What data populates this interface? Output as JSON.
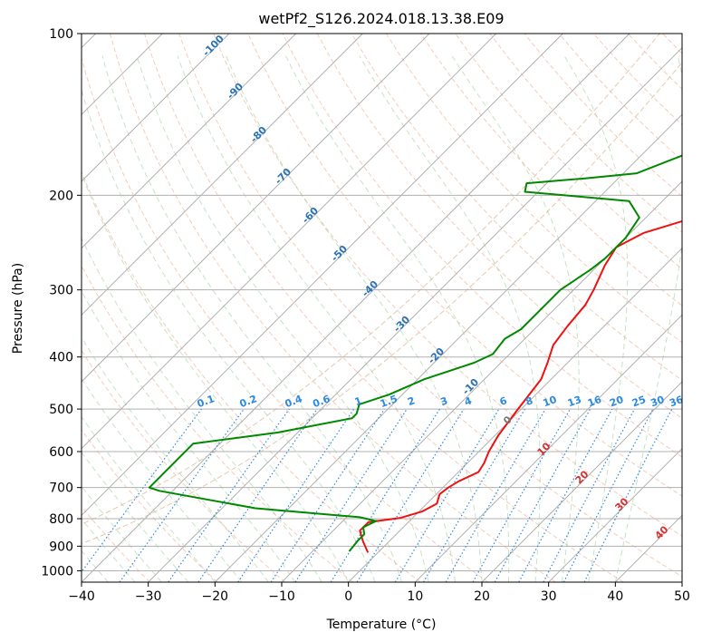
{
  "chart_data": {
    "type": "skew-t",
    "title": "wetPf2_S126.2024.018.13.38.E09",
    "xlabel": "Temperature (°C)",
    "ylabel": "Pressure (hPa)",
    "xlim": [
      -40,
      50
    ],
    "ylim": [
      1050,
      100
    ],
    "x_ticks": [
      "−40",
      "−30",
      "−20",
      "−10",
      "0",
      "10",
      "20",
      "30",
      "40",
      "50"
    ],
    "y_ticks": [
      "100",
      "200",
      "300",
      "400",
      "500",
      "600",
      "700",
      "800",
      "900",
      "1000"
    ],
    "y_scale": "log",
    "grid": true,
    "series": [
      {
        "name": "",
        "color": "#ee1111",
        "points": [
          [
            -1.5,
            925
          ],
          [
            -4,
            880
          ],
          [
            -6,
            842
          ],
          [
            -6,
            812
          ],
          [
            -1.8,
            797
          ],
          [
            0.5,
            775
          ],
          [
            1.5,
            750
          ],
          [
            0.5,
            720
          ],
          [
            0.8,
            700
          ],
          [
            1.5,
            680
          ],
          [
            3,
            655
          ],
          [
            2.5,
            630
          ],
          [
            1.5,
            600
          ],
          [
            0.5,
            560
          ],
          [
            -0.5,
            500
          ],
          [
            -1.5,
            440
          ],
          [
            -3,
            410
          ],
          [
            -4.8,
            380
          ],
          [
            -5.5,
            350
          ],
          [
            -6,
            320
          ],
          [
            -7,
            300
          ],
          [
            -9,
            270
          ],
          [
            -10,
            250
          ],
          [
            -8,
            235
          ],
          [
            -2,
            218
          ],
          [
            6,
            203
          ],
          [
            10,
            193
          ],
          [
            17,
            170
          ],
          [
            25,
            150
          ],
          [
            31,
            130
          ],
          [
            36,
            113
          ],
          [
            38,
            103
          ]
        ]
      },
      {
        "name": "",
        "color": "#008800",
        "points": [
          [
            -4.5,
            920
          ],
          [
            -4.8,
            880
          ],
          [
            -4.8,
            855
          ],
          [
            -6,
            830
          ],
          [
            -5,
            808
          ],
          [
            -8,
            795
          ],
          [
            -25,
            765
          ],
          [
            -42,
            710
          ],
          [
            -44,
            700
          ],
          [
            -44,
            580
          ],
          [
            -33,
            553
          ],
          [
            -24,
            520
          ],
          [
            -24,
            510
          ],
          [
            -25,
            490
          ],
          [
            -22,
            470
          ],
          [
            -19,
            440
          ],
          [
            -14,
            410
          ],
          [
            -12.5,
            395
          ],
          [
            -13,
            370
          ],
          [
            -12,
            355
          ],
          [
            -12,
            330
          ],
          [
            -12,
            300
          ],
          [
            -10.5,
            275
          ],
          [
            -10,
            262
          ],
          [
            -10,
            240
          ],
          [
            -11,
            220
          ],
          [
            -15,
            205
          ],
          [
            -32,
            197
          ],
          [
            -33,
            190
          ],
          [
            -25,
            186
          ],
          [
            -18,
            182
          ],
          [
            -13,
            166
          ],
          [
            -10,
            153
          ],
          [
            -6,
            135
          ],
          [
            0,
            115
          ],
          [
            6,
            100
          ]
        ]
      }
    ],
    "annotations": {
      "dry_adiabats": [
        "-100",
        "-90",
        "-80",
        "-70",
        "-60",
        "-50",
        "-40",
        "-30",
        "-20",
        "-10"
      ],
      "mixing_ratio": [
        "0.1",
        "0.2",
        "0.4",
        "0.6",
        "1",
        "1.5",
        "2",
        "3",
        "4",
        "6",
        "8",
        "10",
        "13",
        "16",
        "20",
        "25",
        "30",
        "36"
      ],
      "moist_adiabats": [
        "0",
        "10",
        "20",
        "30",
        "40"
      ]
    }
  },
  "colors": {
    "temperature": "#ee1111",
    "dewpoint": "#008800",
    "dry_adiabat_labels": "#2a73b5",
    "mixing_ratio_labels": "#2b8ae0",
    "moist_adiabat_labels": "#d63030"
  }
}
